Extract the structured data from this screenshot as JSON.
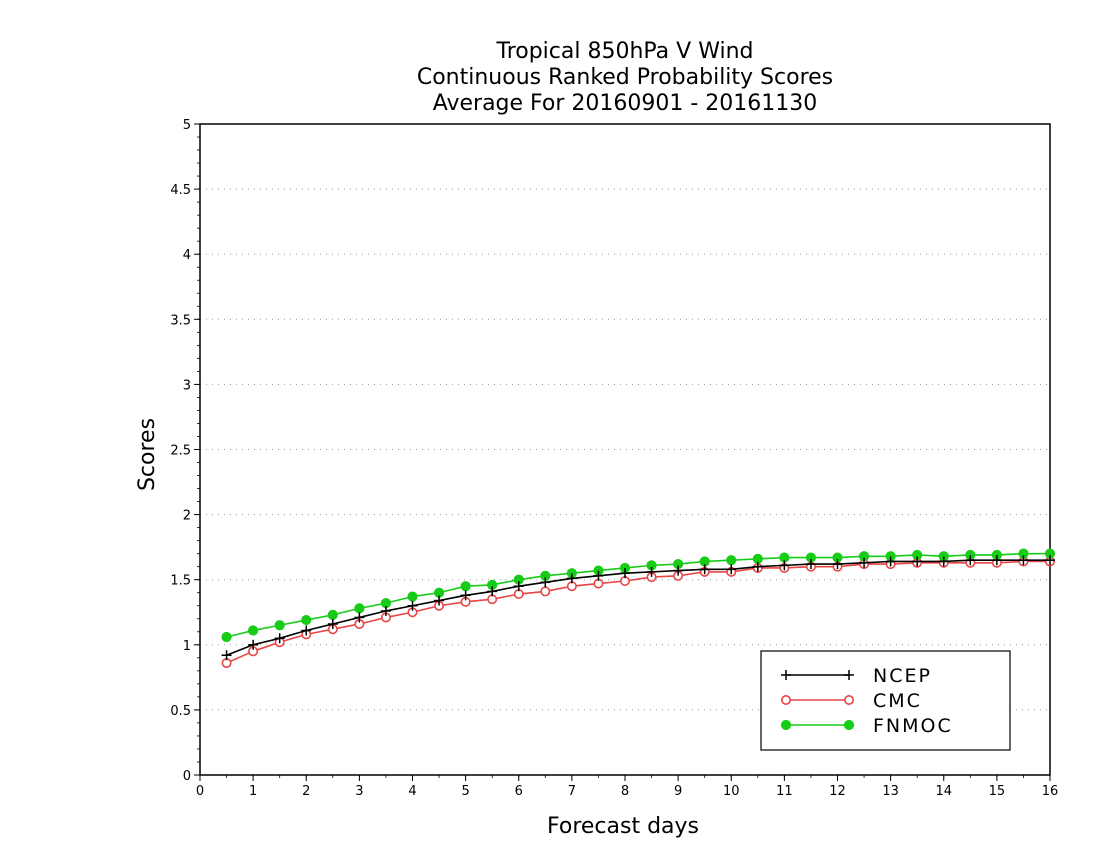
{
  "chart_data": {
    "type": "line",
    "title_lines": [
      "Tropical 850hPa V Wind",
      "Continuous Ranked Probability Scores",
      "Average For 20160901 - 20161130"
    ],
    "xlabel": "Forecast days",
    "ylabel": "Scores",
    "xlim": [
      0,
      16
    ],
    "ylim": [
      0,
      5
    ],
    "x_ticks": [
      0,
      1,
      2,
      3,
      4,
      5,
      6,
      7,
      8,
      9,
      10,
      11,
      12,
      13,
      14,
      15,
      16
    ],
    "x_tick_labels": [
      "0",
      "1",
      "2",
      "3",
      "4",
      "5",
      "6",
      "7",
      "8",
      "9",
      "10",
      "11",
      "12",
      "13",
      "14",
      "15",
      "16"
    ],
    "y_ticks": [
      0,
      0.5,
      1,
      1.5,
      2,
      2.5,
      3,
      3.5,
      4,
      4.5,
      5
    ],
    "y_tick_labels": [
      "0",
      "0.5",
      "1",
      "1.5",
      "2",
      "2.5",
      "3",
      "3.5",
      "4",
      "4.5",
      "5"
    ],
    "grid": "horizontal dotted",
    "legend_position": "bottom-right",
    "x": [
      0.5,
      1,
      1.5,
      2,
      2.5,
      3,
      3.5,
      4,
      4.5,
      5,
      5.5,
      6,
      6.5,
      7,
      7.5,
      8,
      8.5,
      9,
      9.5,
      10,
      10.5,
      11,
      11.5,
      12,
      12.5,
      13,
      13.5,
      14,
      14.5,
      15,
      15.5,
      16
    ],
    "series": [
      {
        "name": "NCEP",
        "color": "#000000",
        "marker": "plus",
        "values": [
          0.92,
          1.0,
          1.05,
          1.11,
          1.16,
          1.21,
          1.26,
          1.3,
          1.34,
          1.38,
          1.41,
          1.45,
          1.48,
          1.51,
          1.53,
          1.55,
          1.56,
          1.57,
          1.58,
          1.58,
          1.6,
          1.61,
          1.62,
          1.62,
          1.63,
          1.64,
          1.64,
          1.64,
          1.65,
          1.65,
          1.65,
          1.65
        ]
      },
      {
        "name": "CMC",
        "color": "#e84545",
        "marker": "open-circle",
        "values": [
          0.86,
          0.95,
          1.02,
          1.08,
          1.12,
          1.16,
          1.21,
          1.25,
          1.3,
          1.33,
          1.35,
          1.39,
          1.41,
          1.45,
          1.47,
          1.49,
          1.52,
          1.53,
          1.56,
          1.56,
          1.59,
          1.59,
          1.6,
          1.6,
          1.62,
          1.62,
          1.63,
          1.63,
          1.63,
          1.63,
          1.64,
          1.64
        ]
      },
      {
        "name": "FNMOC",
        "color": "#16cc16",
        "marker": "filled-circle",
        "values": [
          1.06,
          1.11,
          1.15,
          1.19,
          1.23,
          1.28,
          1.32,
          1.37,
          1.4,
          1.45,
          1.46,
          1.5,
          1.53,
          1.55,
          1.57,
          1.59,
          1.61,
          1.62,
          1.64,
          1.65,
          1.66,
          1.67,
          1.67,
          1.67,
          1.68,
          1.68,
          1.69,
          1.68,
          1.69,
          1.69,
          1.7,
          1.7
        ]
      }
    ]
  }
}
